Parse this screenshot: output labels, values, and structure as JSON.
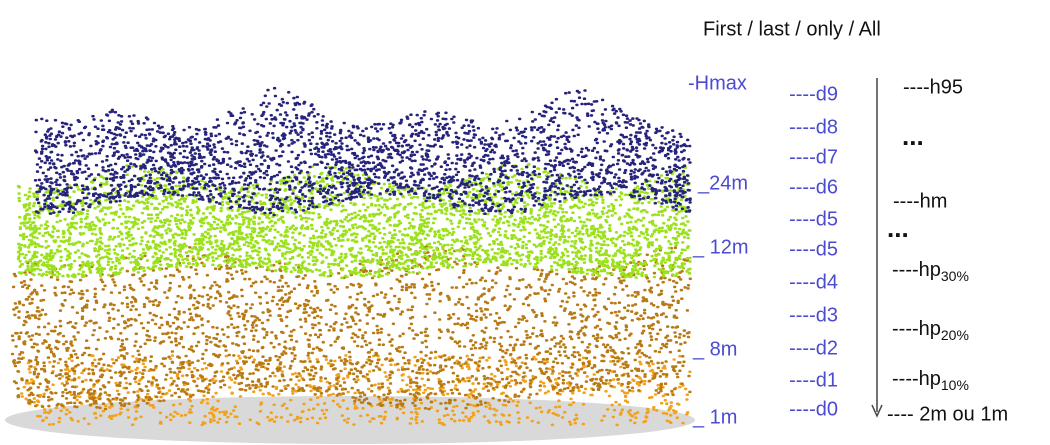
{
  "header": {
    "title": "First / last / only / All"
  },
  "height_labels": [
    "-Hmax",
    "_24m",
    "_ 12m",
    "_ 8m",
    "_ 1m"
  ],
  "deciles": [
    "----d9",
    "----d8",
    "----d7",
    "----d6",
    "----d5",
    "----d5",
    "----d4",
    "----d3",
    "----d2",
    "----d1",
    "----d0"
  ],
  "metrics": [
    {
      "text": "----h95"
    },
    {
      "text": "..."
    },
    {
      "text": "----hm"
    },
    {
      "text": "..."
    },
    {
      "text": "----hp",
      "sub": "30%"
    },
    {
      "text": "----hp",
      "sub": "20%"
    },
    {
      "text": "----hp",
      "sub": "10%"
    },
    {
      "text": "---- 2m ou 1m"
    }
  ]
}
